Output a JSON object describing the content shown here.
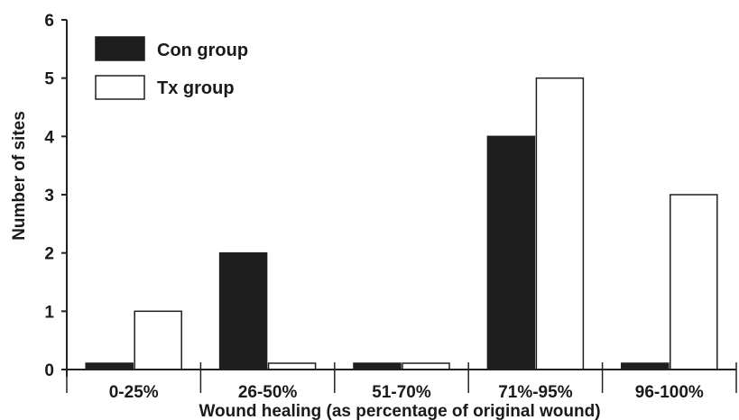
{
  "chart_data": {
    "type": "bar",
    "xlabel": "Wound healing (as percentage of original wound)",
    "ylabel": "Number of sites",
    "categories": [
      "0-25%",
      "26-50%",
      "51-70%",
      "71%-95%",
      "96-100%"
    ],
    "ylim": [
      0,
      6
    ],
    "yticks": [
      0,
      1,
      2,
      3,
      4,
      5,
      6
    ],
    "grid": false,
    "legend": "top-left",
    "series": [
      {
        "name": "Con group",
        "values": [
          0,
          2,
          0,
          4,
          0
        ],
        "fill": "#1e1e1e"
      },
      {
        "name": "Tx group",
        "values": [
          1,
          0,
          0,
          5,
          3
        ],
        "fill": "#ffffff"
      }
    ]
  }
}
